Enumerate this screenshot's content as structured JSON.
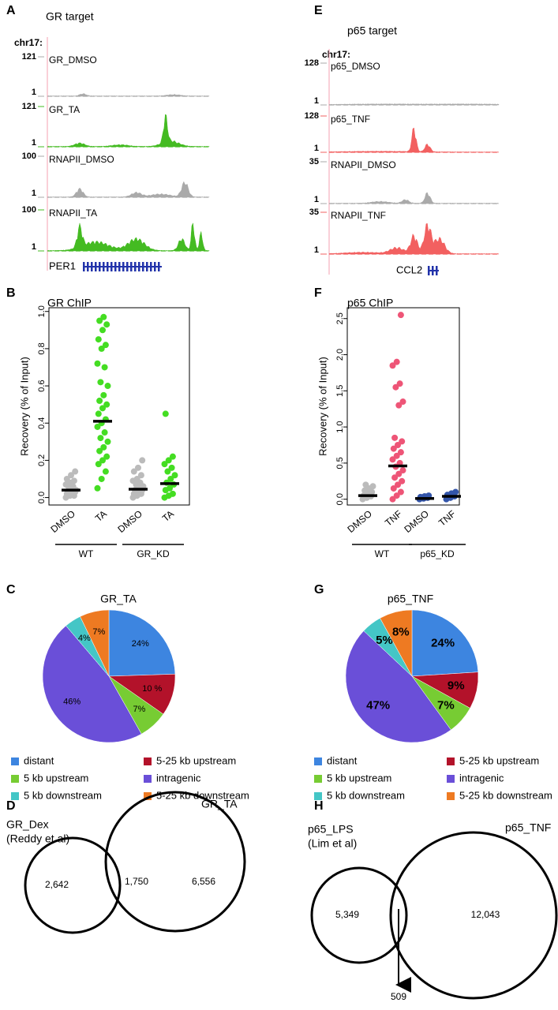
{
  "panels": [
    "A",
    "E",
    "B",
    "F",
    "C",
    "G",
    "D",
    "H"
  ],
  "tracks": [
    {
      "title": "GR target",
      "chrom": "chr17:",
      "gene": "PER1",
      "rows": [
        {
          "name": "GR_DMSO",
          "max": 121,
          "min": 1,
          "color": "#aaaaaa",
          "label_color": "#aaaaaa"
        },
        {
          "name": "GR_TA",
          "max": 121,
          "min": 1,
          "color": "#44bb22",
          "label_color": "#226611"
        },
        {
          "name": "RNAPII_DMSO",
          "max": 100,
          "min": 1,
          "color": "#aaaaaa",
          "label_color": "#999999"
        },
        {
          "name": "RNAPII_TA",
          "max": 100,
          "min": 1,
          "color": "#44bb22",
          "label_color": "#226611"
        }
      ]
    },
    {
      "title": "p65 target",
      "chrom": "chr17:",
      "gene": "CCL2",
      "rows": [
        {
          "name": "p65_DMSO",
          "max": 128,
          "min": 1,
          "color": "#aaaaaa",
          "label_color": "#778888"
        },
        {
          "name": "p65_TNF",
          "max": 128,
          "min": 1,
          "color": "#f26060",
          "label_color": "#f26060"
        },
        {
          "name": "RNAPII_DMSO",
          "max": 35,
          "min": 1,
          "color": "#aaaaaa",
          "label_color": "#778888"
        },
        {
          "name": "RNAPII_TNF",
          "max": 35,
          "min": 1,
          "color": "#f26060",
          "label_color": "#f26060"
        }
      ]
    }
  ],
  "chart_data": [
    {
      "type": "strip",
      "title": "GR ChIP",
      "ylabel": "Recovery (% of Input)",
      "categories": [
        "DMSO",
        "TA",
        "DMSO",
        "TA"
      ],
      "groups": [
        "WT",
        "GR_KD"
      ],
      "colors": [
        "#bbbbbb",
        "#44dd22",
        "#bbbbbb",
        "#44dd22"
      ],
      "points": [
        [
          0.0,
          0.01,
          0.01,
          0.02,
          0.02,
          0.03,
          0.03,
          0.04,
          0.04,
          0.05,
          0.06,
          0.07,
          0.08,
          0.09,
          0.1,
          0.12,
          0.14
        ],
        [
          0.05,
          0.1,
          0.14,
          0.18,
          0.2,
          0.22,
          0.25,
          0.27,
          0.3,
          0.32,
          0.35,
          0.38,
          0.4,
          0.42,
          0.45,
          0.48,
          0.5,
          0.52,
          0.55,
          0.6,
          0.62,
          0.7,
          0.72,
          0.8,
          0.82,
          0.85,
          0.9,
          0.93,
          0.95,
          0.97
        ],
        [
          0.0,
          0.01,
          0.02,
          0.02,
          0.03,
          0.04,
          0.04,
          0.05,
          0.06,
          0.07,
          0.08,
          0.09,
          0.1,
          0.12,
          0.14,
          0.16,
          0.2
        ],
        [
          0.0,
          0.01,
          0.02,
          0.04,
          0.05,
          0.07,
          0.08,
          0.1,
          0.12,
          0.14,
          0.16,
          0.18,
          0.2,
          0.22,
          0.45
        ]
      ],
      "medians": [
        0.04,
        0.41,
        0.045,
        0.075
      ],
      "ylim": [
        -0.04,
        1.02
      ],
      "yticks": [
        {
          "value": 0,
          "label": "0.0"
        },
        0.2,
        0.4,
        0.6,
        0.8,
        {
          "value": 1,
          "label": "1.0"
        }
      ]
    },
    {
      "type": "strip",
      "title": "p65 ChIP",
      "ylabel": "Recovery (% of Input)",
      "categories": [
        "DMSO",
        "TNF",
        "DMSO",
        "TNF"
      ],
      "groups": [
        "WT",
        "p65_KD"
      ],
      "colors": [
        "#bbbbbb",
        "#ee5577",
        "#3355aa",
        "#3355aa"
      ],
      "points": [
        [
          0.0,
          0.02,
          0.04,
          0.05,
          0.07,
          0.1,
          0.12,
          0.15,
          0.18,
          0.2
        ],
        [
          0.0,
          0.05,
          0.1,
          0.15,
          0.2,
          0.25,
          0.3,
          0.35,
          0.4,
          0.45,
          0.5,
          0.55,
          0.6,
          0.65,
          0.7,
          0.75,
          0.8,
          0.85,
          1.3,
          1.35,
          1.55,
          1.6,
          1.85,
          1.9,
          2.55
        ],
        [
          0.0,
          0.01,
          0.02,
          0.03,
          0.04,
          0.05
        ],
        [
          0.0,
          0.02,
          0.04,
          0.06,
          0.08,
          0.1
        ]
      ],
      "medians": [
        0.05,
        0.46,
        0.01,
        0.04
      ],
      "ylim": [
        -0.08,
        2.65
      ],
      "yticks": [
        {
          "value": 0,
          "label": "0.0"
        },
        0.5,
        {
          "value": 1,
          "label": "1.0"
        },
        1.5,
        {
          "value": 2,
          "label": "2.0"
        },
        2.5
      ]
    },
    {
      "type": "pie",
      "title": "GR_TA",
      "categories": [
        "distant",
        "5-25 kb upstream",
        "5 kb upstream",
        "intragenic",
        "5 kb downstream",
        "5-25 kb downstream"
      ],
      "values": [
        24,
        10,
        7,
        46,
        4,
        7
      ],
      "value_labels": [
        "24%",
        "10 %",
        "7%",
        "46%",
        "4%",
        "7%"
      ],
      "colors": [
        "#3d85e0",
        "#b3122a",
        "#77cc33",
        "#6a4fd8",
        "#44c6c6",
        "#ee7a22"
      ]
    },
    {
      "type": "pie",
      "title": "p65_TNF",
      "categories": [
        "distant",
        "5-25 kb upstream",
        "5 kb upstream",
        "intragenic",
        "5 kb downstream",
        "5-25 kb downstream"
      ],
      "values": [
        24,
        9,
        7,
        47,
        5,
        8
      ],
      "value_labels": [
        "24%",
        "9%",
        "7%",
        "47%",
        "5%",
        "8%"
      ],
      "colors": [
        "#3d85e0",
        "#b3122a",
        "#77cc33",
        "#6a4fd8",
        "#44c6c6",
        "#ee7a22"
      ]
    },
    {
      "type": "venn",
      "sets": [
        {
          "name": "GR_Dex",
          "note": "(Reddy et al)"
        },
        {
          "name": "GR_TA"
        }
      ],
      "values": [
        2642,
        1750,
        6556
      ],
      "value_labels": [
        "2,642",
        "1,750",
        "6,556"
      ]
    },
    {
      "type": "venn",
      "sets": [
        {
          "name": "p65_LPS",
          "note": "(Lim et al)"
        },
        {
          "name": "p65_TNF"
        }
      ],
      "values": [
        5349,
        509,
        12043
      ],
      "value_labels": [
        "5,349",
        "509",
        "12,043"
      ]
    }
  ]
}
